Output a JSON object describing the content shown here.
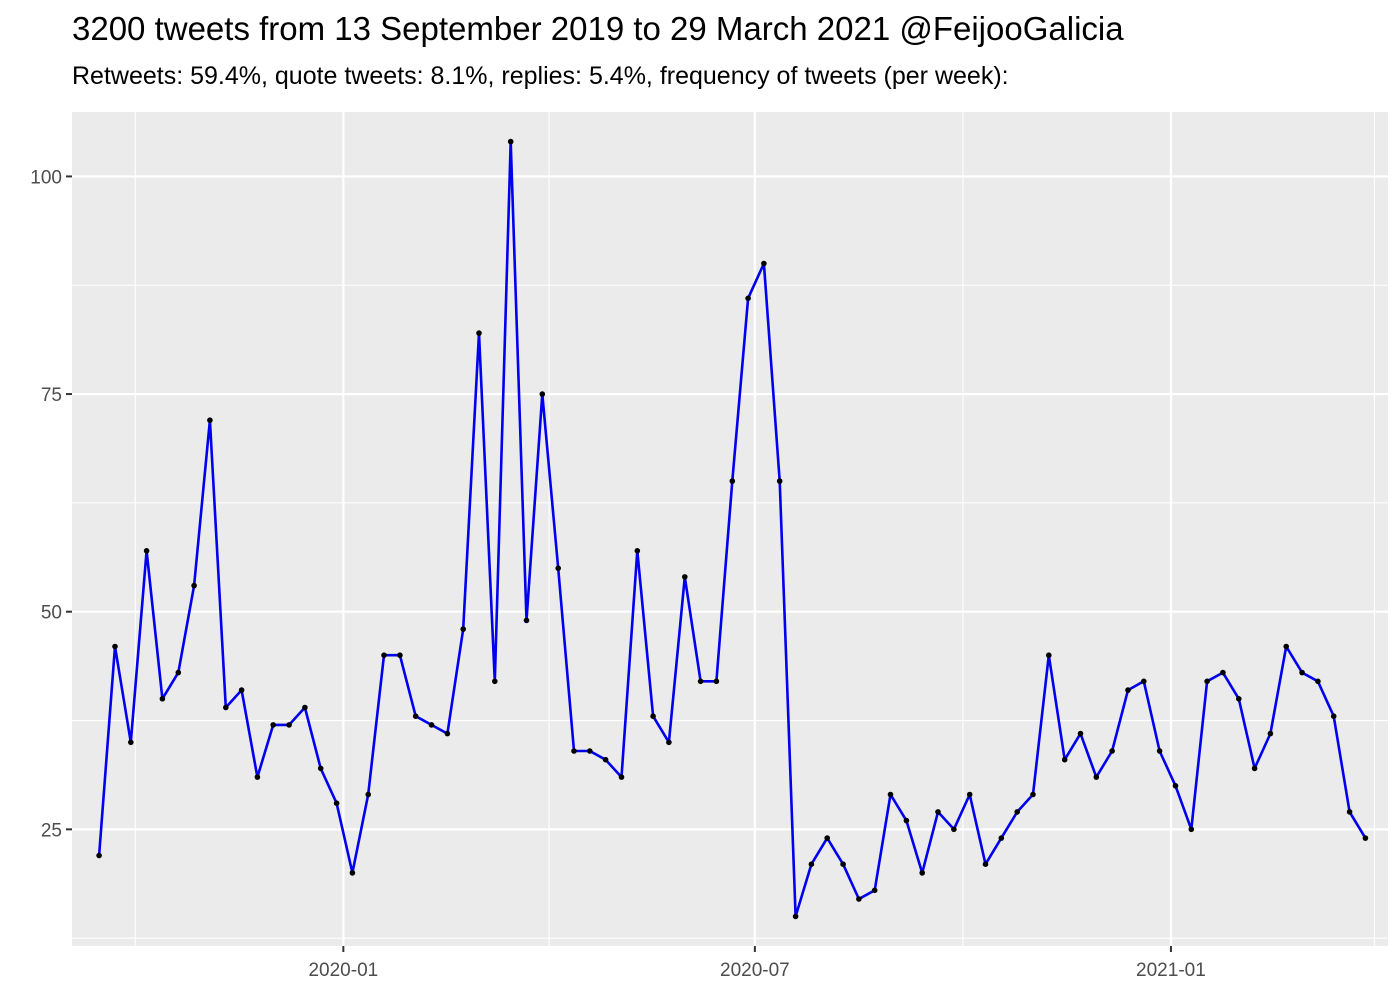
{
  "title": "3200 tweets from 13 September 2019 to 29 March 2021 @FeijooGalicia",
  "subtitle": "Retweets: 59.4%, quote tweets: 8.1%, replies: 5.4%, frequency of tweets (per week):",
  "colors": {
    "line": "#0000ee",
    "point": "#000000",
    "panel": "#ebebeb",
    "grid": "#ffffff"
  },
  "chart_data": {
    "type": "line",
    "grid": true,
    "xlabel": "",
    "ylabel": "",
    "ylim": [
      11.6,
      107.4
    ],
    "xlim": [
      "2019-09-03",
      "2021-04-07"
    ],
    "y_ticks": [
      25,
      50,
      75,
      100
    ],
    "x_ticks": [
      "2020-01",
      "2020-07",
      "2021-01"
    ],
    "x": [
      "2019-09-15",
      "2019-09-22",
      "2019-09-29",
      "2019-10-06",
      "2019-10-13",
      "2019-10-20",
      "2019-10-27",
      "2019-11-03",
      "2019-11-10",
      "2019-11-17",
      "2019-11-24",
      "2019-12-01",
      "2019-12-08",
      "2019-12-15",
      "2019-12-22",
      "2019-12-29",
      "2020-01-05",
      "2020-01-12",
      "2020-01-19",
      "2020-01-26",
      "2020-02-02",
      "2020-02-09",
      "2020-02-16",
      "2020-02-23",
      "2020-03-01",
      "2020-03-08",
      "2020-03-15",
      "2020-03-22",
      "2020-03-29",
      "2020-04-05",
      "2020-04-12",
      "2020-04-19",
      "2020-04-26",
      "2020-05-03",
      "2020-05-10",
      "2020-05-17",
      "2020-05-24",
      "2020-05-31",
      "2020-06-07",
      "2020-06-14",
      "2020-06-21",
      "2020-06-28",
      "2020-07-05",
      "2020-07-12",
      "2020-07-19",
      "2020-07-26",
      "2020-08-02",
      "2020-08-09",
      "2020-08-16",
      "2020-08-23",
      "2020-08-30",
      "2020-09-06",
      "2020-09-13",
      "2020-09-20",
      "2020-09-27",
      "2020-10-04",
      "2020-10-11",
      "2020-10-18",
      "2020-10-25",
      "2020-11-01",
      "2020-11-08",
      "2020-11-15",
      "2020-11-22",
      "2020-11-29",
      "2020-12-06",
      "2020-12-13",
      "2020-12-20",
      "2020-12-27",
      "2021-01-03",
      "2021-01-10",
      "2021-01-17",
      "2021-01-24",
      "2021-01-31",
      "2021-02-07",
      "2021-02-14",
      "2021-02-21",
      "2021-02-28",
      "2021-03-07",
      "2021-03-14",
      "2021-03-21",
      "2021-03-28"
    ],
    "series": [
      {
        "values": [
          22,
          46,
          35,
          57,
          40,
          43,
          53,
          72,
          39,
          41,
          31,
          37,
          37,
          39,
          32,
          28,
          20,
          29,
          45,
          45,
          38,
          37,
          36,
          48,
          82,
          42,
          104,
          49,
          75,
          55,
          34,
          34,
          33,
          31,
          57,
          38,
          35,
          54,
          42,
          42,
          65,
          86,
          90,
          65,
          15,
          21,
          24,
          21,
          17,
          18,
          29,
          26,
          20,
          27,
          25,
          29,
          21,
          24,
          27,
          29,
          45,
          33,
          36,
          31,
          34,
          41,
          42,
          34,
          30,
          25,
          42,
          43,
          40,
          32,
          36,
          46,
          43,
          42,
          38,
          27,
          24
        ]
      }
    ]
  }
}
